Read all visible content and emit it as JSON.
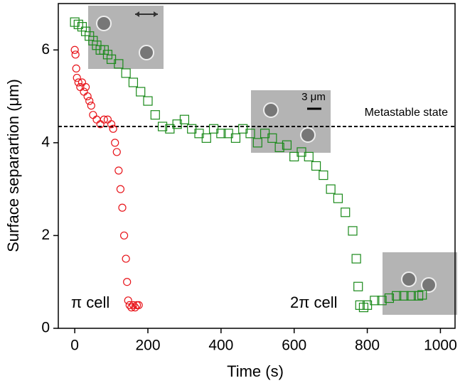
{
  "chart_data": {
    "type": "scatter",
    "x_label": "Time (s)",
    "y_label": "Surface separartion (μm)",
    "xlim": [
      -45,
      1040
    ],
    "ylim": [
      0,
      7
    ],
    "xticks": [
      0,
      200,
      400,
      600,
      800,
      1000
    ],
    "yticks": [
      0,
      2,
      4,
      6
    ],
    "hline": {
      "value": 4.35,
      "label": "Metastable state"
    },
    "scale_bar_label": "3 μm",
    "series": [
      {
        "name": "π cell",
        "color": "#e8141a",
        "marker": "circle",
        "x": [
          0,
          2,
          4,
          6,
          10,
          15,
          20,
          25,
          30,
          35,
          40,
          45,
          50,
          60,
          70,
          80,
          90,
          100,
          105,
          110,
          115,
          120,
          125,
          130,
          135,
          140,
          143,
          146,
          150,
          155,
          160,
          165,
          170,
          175
        ],
        "values": [
          6.0,
          5.9,
          5.6,
          5.4,
          5.3,
          5.2,
          5.3,
          5.1,
          5.2,
          5.0,
          4.9,
          4.8,
          4.6,
          4.5,
          4.4,
          4.5,
          4.5,
          4.4,
          4.3,
          4.0,
          3.8,
          3.4,
          3.0,
          2.6,
          2.0,
          1.5,
          1.0,
          0.6,
          0.5,
          0.45,
          0.5,
          0.45,
          0.5,
          0.5
        ]
      },
      {
        "name": "2π cell",
        "color": "#1a8a1a",
        "marker": "square",
        "x": [
          0,
          10,
          20,
          30,
          40,
          50,
          60,
          70,
          80,
          90,
          100,
          120,
          140,
          160,
          180,
          200,
          220,
          240,
          260,
          280,
          300,
          320,
          340,
          360,
          380,
          400,
          420,
          440,
          460,
          480,
          500,
          520,
          540,
          560,
          580,
          600,
          620,
          640,
          660,
          680,
          700,
          720,
          740,
          760,
          770,
          775,
          780,
          790,
          800,
          820,
          840,
          860,
          880,
          900,
          920,
          940,
          950
        ],
        "values": [
          6.6,
          6.55,
          6.5,
          6.4,
          6.3,
          6.2,
          6.1,
          6.0,
          6.0,
          5.9,
          5.8,
          5.7,
          5.5,
          5.3,
          5.1,
          4.9,
          4.6,
          4.35,
          4.3,
          4.4,
          4.5,
          4.3,
          4.2,
          4.1,
          4.3,
          4.2,
          4.2,
          4.1,
          4.3,
          4.2,
          4.0,
          4.2,
          4.1,
          3.9,
          3.95,
          3.7,
          3.8,
          3.7,
          3.5,
          3.3,
          3.0,
          2.8,
          2.5,
          2.1,
          1.5,
          0.9,
          0.5,
          0.45,
          0.5,
          0.6,
          0.6,
          0.65,
          0.7,
          0.7,
          0.7,
          0.7,
          0.72
        ]
      }
    ]
  }
}
